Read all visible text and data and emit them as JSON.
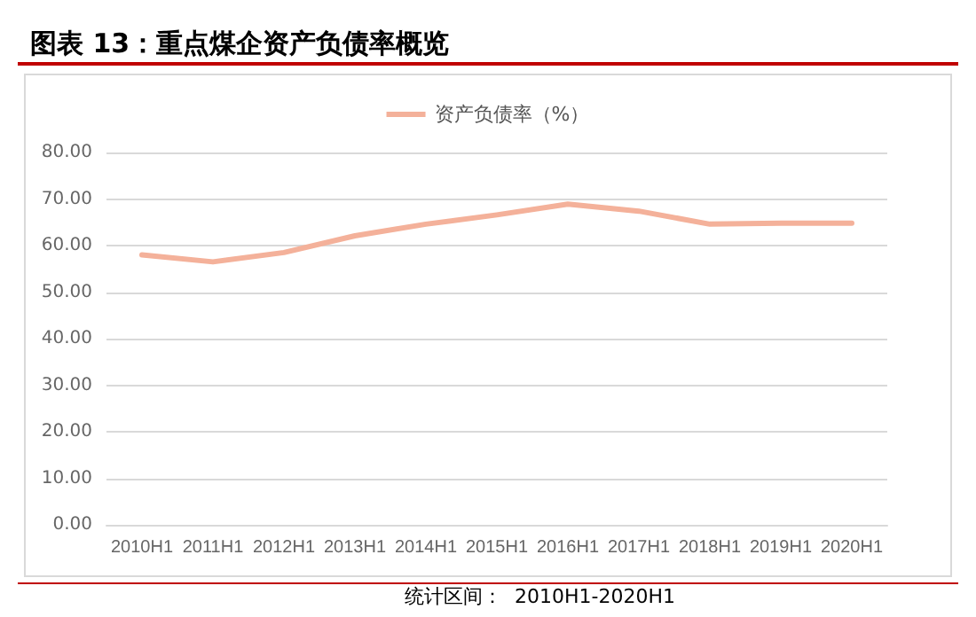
{
  "chart_data": {
    "type": "line",
    "title": "图表 13：重点煤企资产负债率概览",
    "categories": [
      "2010H1",
      "2011H1",
      "2012H1",
      "2013H1",
      "2014H1",
      "2015H1",
      "2016H1",
      "2017H1",
      "2018H1",
      "2019H1",
      "2020H1"
    ],
    "series": [
      {
        "name": "资产负债率（%）",
        "color": "#f4b19a",
        "values": [
          58.0,
          56.5,
          58.5,
          62.1,
          64.6,
          66.6,
          68.9,
          67.4,
          64.6,
          64.8,
          64.8
        ]
      }
    ],
    "ylim": [
      0,
      80
    ],
    "yticks": [
      {
        "value": 0,
        "label": "0.00"
      },
      {
        "value": 10,
        "label": "10.00"
      },
      {
        "value": 20,
        "label": "20.00"
      },
      {
        "value": 30,
        "label": "30.00"
      },
      {
        "value": 40,
        "label": "40.00"
      },
      {
        "value": 50,
        "label": "50.00"
      },
      {
        "value": 60,
        "label": "60.00"
      },
      {
        "value": 70,
        "label": "70.00"
      },
      {
        "value": 80,
        "label": "80.00"
      }
    ],
    "grid": "y",
    "legend": "top",
    "marker": "none",
    "line_style": "solid",
    "annotations": [
      "统计区间：  2010H1-2020H1"
    ]
  }
}
